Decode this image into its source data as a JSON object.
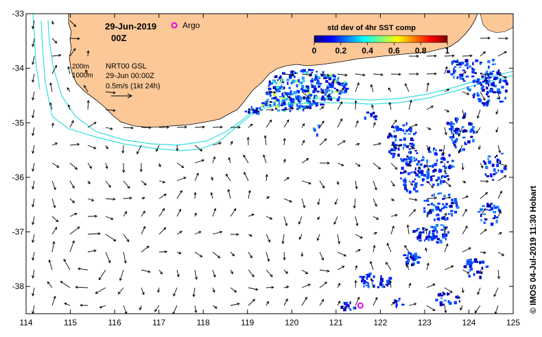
{
  "title": {
    "date": "29-Jun-2019",
    "time": "00Z"
  },
  "legend": {
    "argo_label": "Argo",
    "argo_color": "#e000e0"
  },
  "colorbar": {
    "title": "std dev of 4hr SST comp",
    "ticks": [
      "0",
      "0.2",
      "0.4",
      "0.6",
      "0.8",
      "1"
    ],
    "min": 0,
    "max": 1,
    "colors": [
      "#00007f",
      "#0000ff",
      "#007fff",
      "#00ffff",
      "#7fff7f",
      "#ffff00",
      "#ff7f00",
      "#ff0000",
      "#7f0000"
    ]
  },
  "info": {
    "isobath_200": "200m",
    "isobath_1000": "1000m",
    "source": "NRT00 GSL",
    "datetime": "29-Jun 00:00Z",
    "scale": "0.5m/s (1kt 24h)",
    "isobath_color": "#33dde0"
  },
  "axes": {
    "x_ticks": [
      "114",
      "115",
      "116",
      "117",
      "118",
      "119",
      "120",
      "121",
      "122",
      "123",
      "124",
      "125"
    ],
    "y_ticks": [
      "-33",
      "-34",
      "-35",
      "-36",
      "-37",
      "-38"
    ],
    "lon_range": [
      114,
      125
    ],
    "lat_range": [
      -38.5,
      -33
    ]
  },
  "colors": {
    "land": "#fcc898",
    "sea": "#ffffff"
  },
  "argo_float": {
    "lon": 121.55,
    "lat": -38.35
  },
  "credit": "© IMOS 04-Jul-2019 11:30 Hobart"
}
